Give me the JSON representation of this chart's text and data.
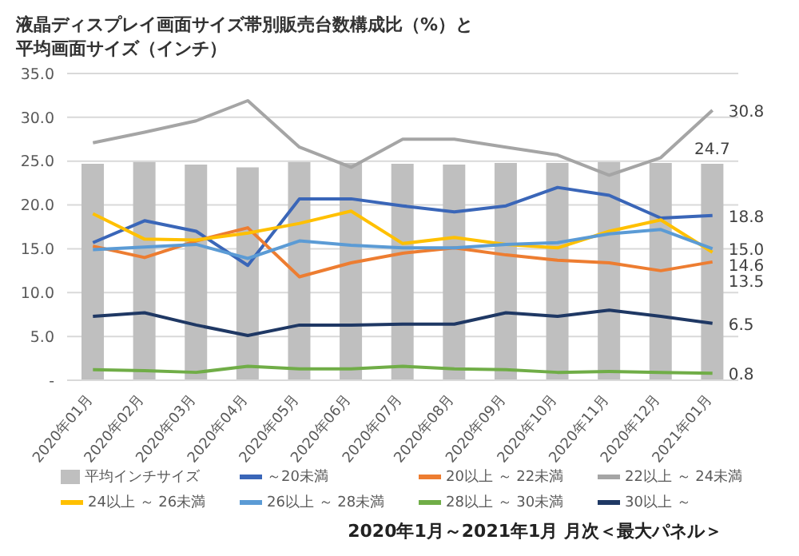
{
  "chart_data": {
    "type": "line",
    "title": "液晶ディスプレイ画面サイズ帯別販売台数構成比（%）と平均画面サイズ（インチ）",
    "categories": [
      "2020年01月",
      "2020年02月",
      "2020年03月",
      "2020年04月",
      "2020年05月",
      "2020年06月",
      "2020年07月",
      "2020年08月",
      "2020年09月",
      "2020年10月",
      "2020年11月",
      "2020年12月",
      "2021年01月"
    ],
    "series": [
      {
        "name": "平均インチサイズ",
        "type": "bar",
        "color": "#bfbfbf",
        "values": [
          24.7,
          24.9,
          24.6,
          24.3,
          24.9,
          24.8,
          24.7,
          24.6,
          24.8,
          24.8,
          24.9,
          24.8,
          24.7
        ],
        "value_labels": [
          null,
          null,
          null,
          null,
          null,
          null,
          null,
          null,
          null,
          null,
          null,
          null,
          "24.7"
        ]
      },
      {
        "name": "～20未満",
        "color": "#3a66b8",
        "values": [
          15.7,
          18.2,
          17.0,
          13.1,
          20.7,
          20.7,
          19.9,
          19.2,
          19.9,
          22.0,
          21.1,
          18.5,
          18.8
        ],
        "value_labels": [
          null,
          null,
          null,
          null,
          null,
          null,
          null,
          null,
          null,
          null,
          null,
          null,
          "18.8"
        ]
      },
      {
        "name": "20以上 ～ 22未満",
        "color": "#ed7d31",
        "values": [
          15.3,
          14.0,
          15.9,
          17.4,
          11.8,
          13.4,
          14.5,
          15.1,
          14.3,
          13.7,
          13.4,
          12.5,
          13.5
        ],
        "value_labels": [
          null,
          null,
          null,
          null,
          null,
          null,
          null,
          null,
          null,
          null,
          null,
          null,
          "13.5"
        ]
      },
      {
        "name": "22以上 ～ 24未満",
        "color": "#a5a5a5",
        "values": [
          27.1,
          28.3,
          29.6,
          31.9,
          26.6,
          24.3,
          27.5,
          27.5,
          26.6,
          25.7,
          23.4,
          25.4,
          30.8
        ],
        "value_labels": [
          null,
          null,
          null,
          null,
          null,
          null,
          null,
          null,
          null,
          null,
          null,
          null,
          "30.8"
        ]
      },
      {
        "name": "24以上 ～ 26未満",
        "color": "#ffc000",
        "values": [
          19.0,
          16.1,
          16.0,
          16.8,
          17.9,
          19.3,
          15.6,
          16.3,
          15.5,
          15.1,
          17.0,
          18.3,
          14.6
        ],
        "value_labels": [
          null,
          null,
          null,
          null,
          null,
          null,
          null,
          null,
          null,
          null,
          null,
          null,
          "14.6"
        ]
      },
      {
        "name": "26以上 ～ 28未満",
        "color": "#5b9bd5",
        "values": [
          14.9,
          15.2,
          15.5,
          13.9,
          15.9,
          15.4,
          15.1,
          15.1,
          15.5,
          15.7,
          16.7,
          17.2,
          15.0
        ],
        "value_labels": [
          null,
          null,
          null,
          null,
          null,
          null,
          null,
          null,
          null,
          null,
          null,
          null,
          "15.0"
        ]
      },
      {
        "name": "28以上 ～ 30未満",
        "color": "#70ad47",
        "values": [
          1.2,
          1.1,
          0.9,
          1.6,
          1.3,
          1.3,
          1.6,
          1.3,
          1.2,
          0.9,
          1.0,
          0.9,
          0.8
        ],
        "value_labels": [
          null,
          null,
          null,
          null,
          null,
          null,
          null,
          null,
          null,
          null,
          null,
          null,
          "0.8"
        ]
      },
      {
        "name": "30以上 ～",
        "color": "#1f3864",
        "values": [
          7.3,
          7.7,
          6.3,
          5.1,
          6.3,
          6.3,
          6.4,
          6.4,
          7.7,
          7.3,
          8.0,
          7.3,
          6.5
        ],
        "value_labels": [
          null,
          null,
          null,
          null,
          null,
          null,
          null,
          null,
          null,
          null,
          null,
          null,
          "6.5"
        ]
      }
    ],
    "ylim": [
      0,
      35
    ],
    "yticks": [
      {
        "value": 0,
        "label": "-"
      },
      {
        "value": 5,
        "label": "5.0"
      },
      {
        "value": 10,
        "label": "10.0"
      },
      {
        "value": 15,
        "label": "15.0"
      },
      {
        "value": 20,
        "label": "20.0"
      },
      {
        "value": 25,
        "label": "25.0"
      },
      {
        "value": 30,
        "label": "30.0"
      },
      {
        "value": 35,
        "label": "35.0"
      }
    ],
    "grid": "y",
    "legend": "bottom",
    "marker": "none",
    "line_style": "solid",
    "annotations": [
      "2020年1月～2021年1月 月次＜最大パネル＞"
    ]
  }
}
